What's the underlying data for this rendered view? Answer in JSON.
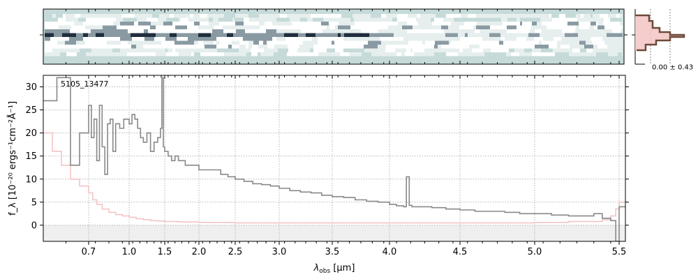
{
  "chart_data": [
    {
      "type": "heatmap",
      "panel": "2d-spectrum",
      "description_rows": 11,
      "colormap": [
        "#c6dbd9",
        "#e6efee",
        "#ffffff",
        "#8a9aa3",
        "#1f2d3d"
      ],
      "yticks": [
        0
      ]
    },
    {
      "type": "line",
      "panel": "1d-spectrum",
      "label": "5105_13477",
      "xlabel_main": "λ",
      "xlabel_sub": "obs",
      "xlabel_unit": " [μm]",
      "ylabel": "f_λ [10⁻²⁰ ergs⁻¹cm⁻²Å⁻¹]",
      "xscale": "nonlinear (spectral-pixel)",
      "xlim": [
        0.6,
        5.52
      ],
      "ylim": [
        -3.5,
        32.5
      ],
      "xticks": [
        0.7,
        1.0,
        1.5,
        2.0,
        2.5,
        3.0,
        3.5,
        4.0,
        4.5,
        5.0,
        5.5
      ],
      "xtick_labels": [
        "0.7",
        "1.0",
        "1.5",
        "2.0",
        "2.5",
        "3.0",
        "3.5",
        "4.0",
        "4.5",
        "5.0",
        "5.5"
      ],
      "yticks": [
        0,
        5,
        10,
        15,
        20,
        25,
        30
      ],
      "ytick_labels": [
        "0",
        "5",
        "10",
        "15",
        "20",
        "25",
        "30"
      ],
      "grid": true,
      "colors": {
        "flux": "#888888",
        "error": "#f4c4c4",
        "zero_band": "#efefef"
      },
      "series": [
        {
          "role": "flux",
          "x": [
            0.6,
            0.63,
            0.66,
            0.68,
            0.7,
            0.72,
            0.74,
            0.76,
            0.78,
            0.8,
            0.82,
            0.84,
            0.86,
            0.88,
            0.9,
            0.93,
            0.96,
            1.0,
            1.04,
            1.08,
            1.12,
            1.16,
            1.2,
            1.25,
            1.3,
            1.35,
            1.4,
            1.44,
            1.46,
            1.48,
            1.5,
            1.55,
            1.6,
            1.65,
            1.7,
            1.8,
            1.9,
            2.0,
            2.1,
            2.2,
            2.3,
            2.4,
            2.5,
            2.6,
            2.7,
            2.8,
            2.9,
            3.0,
            3.1,
            3.2,
            3.3,
            3.4,
            3.5,
            3.6,
            3.7,
            3.8,
            3.9,
            4.0,
            4.05,
            4.1,
            4.12,
            4.14,
            4.16,
            4.2,
            4.3,
            4.4,
            4.5,
            4.6,
            4.7,
            4.8,
            4.9,
            5.0,
            5.1,
            5.2,
            5.3,
            5.35,
            5.4,
            5.45,
            5.48,
            5.5,
            5.52
          ],
          "y": [
            27,
            32,
            13,
            20,
            26,
            19,
            23,
            14,
            26,
            17,
            11,
            22,
            23,
            16,
            22,
            21,
            23,
            22,
            24,
            23,
            21,
            19,
            18,
            20,
            16,
            18,
            19,
            21,
            32,
            17,
            16,
            15,
            14,
            15,
            14,
            13,
            13,
            12,
            12,
            12,
            11,
            10.5,
            10,
            9.5,
            9,
            8.8,
            8.5,
            8,
            7.5,
            7.2,
            7,
            6.5,
            6.2,
            6,
            5.5,
            5.2,
            5,
            4.5,
            4.2,
            4.0,
            10.5,
            4.3,
            4.0,
            4.0,
            3.8,
            3.5,
            3.3,
            3.0,
            3.0,
            2.8,
            2.5,
            2.5,
            2.2,
            2.0,
            2.0,
            2.5,
            1.5,
            1.0,
            -3.5,
            4.0,
            4.0
          ]
        },
        {
          "role": "error",
          "x": [
            0.6,
            0.62,
            0.64,
            0.66,
            0.68,
            0.7,
            0.73,
            0.76,
            0.8,
            0.85,
            0.9,
            0.95,
            1.0,
            1.1,
            1.2,
            1.3,
            1.4,
            1.5,
            1.7,
            2.0,
            2.5,
            3.0,
            3.5,
            4.0,
            4.5,
            5.0,
            5.2,
            5.4,
            5.45,
            5.48,
            5.5,
            5.52
          ],
          "y": [
            20,
            16,
            13,
            10,
            8.5,
            7,
            5.5,
            4.5,
            3.5,
            2.8,
            2.3,
            2.0,
            1.7,
            1.4,
            1.2,
            1.0,
            0.9,
            0.8,
            0.7,
            0.6,
            0.5,
            0.5,
            0.5,
            0.5,
            0.5,
            0.6,
            0.8,
            1.2,
            2.0,
            3.5,
            5.0,
            5.5
          ]
        }
      ]
    },
    {
      "type": "line",
      "panel": "profile",
      "annotation": "0.00 ± 0.43",
      "colors": {
        "profile": "#6b4a3a",
        "fill": "#f4c4c4",
        "marker": "#888888"
      }
    }
  ]
}
